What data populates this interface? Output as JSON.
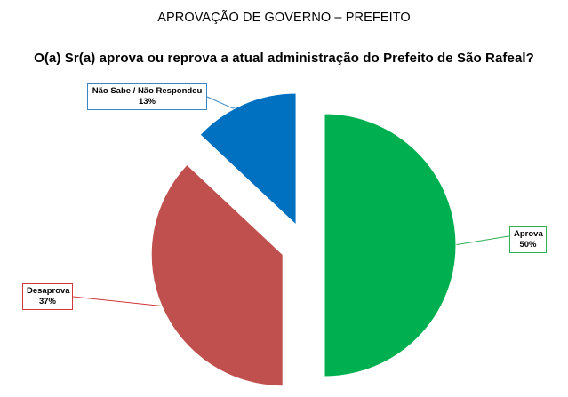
{
  "page_heading": "APROVAÇÃO DE GOVERNO – PREFEITO",
  "chart_data": {
    "type": "pie",
    "title": "O(a) Sr(a) aprova ou reprova a atual administração do Prefeito de São Rafeal?",
    "slices": [
      {
        "label": "Aprova",
        "value": 50,
        "value_label": "50%",
        "color": "#00b050"
      },
      {
        "label": "Desaprova",
        "value": 37,
        "value_label": "37%",
        "color": "#c0504d"
      },
      {
        "label": "Não Sabe / Não Respondeu",
        "value": 13,
        "value_label": "13%",
        "color": "#0070c0"
      }
    ],
    "exploded": true,
    "legend": "none"
  }
}
